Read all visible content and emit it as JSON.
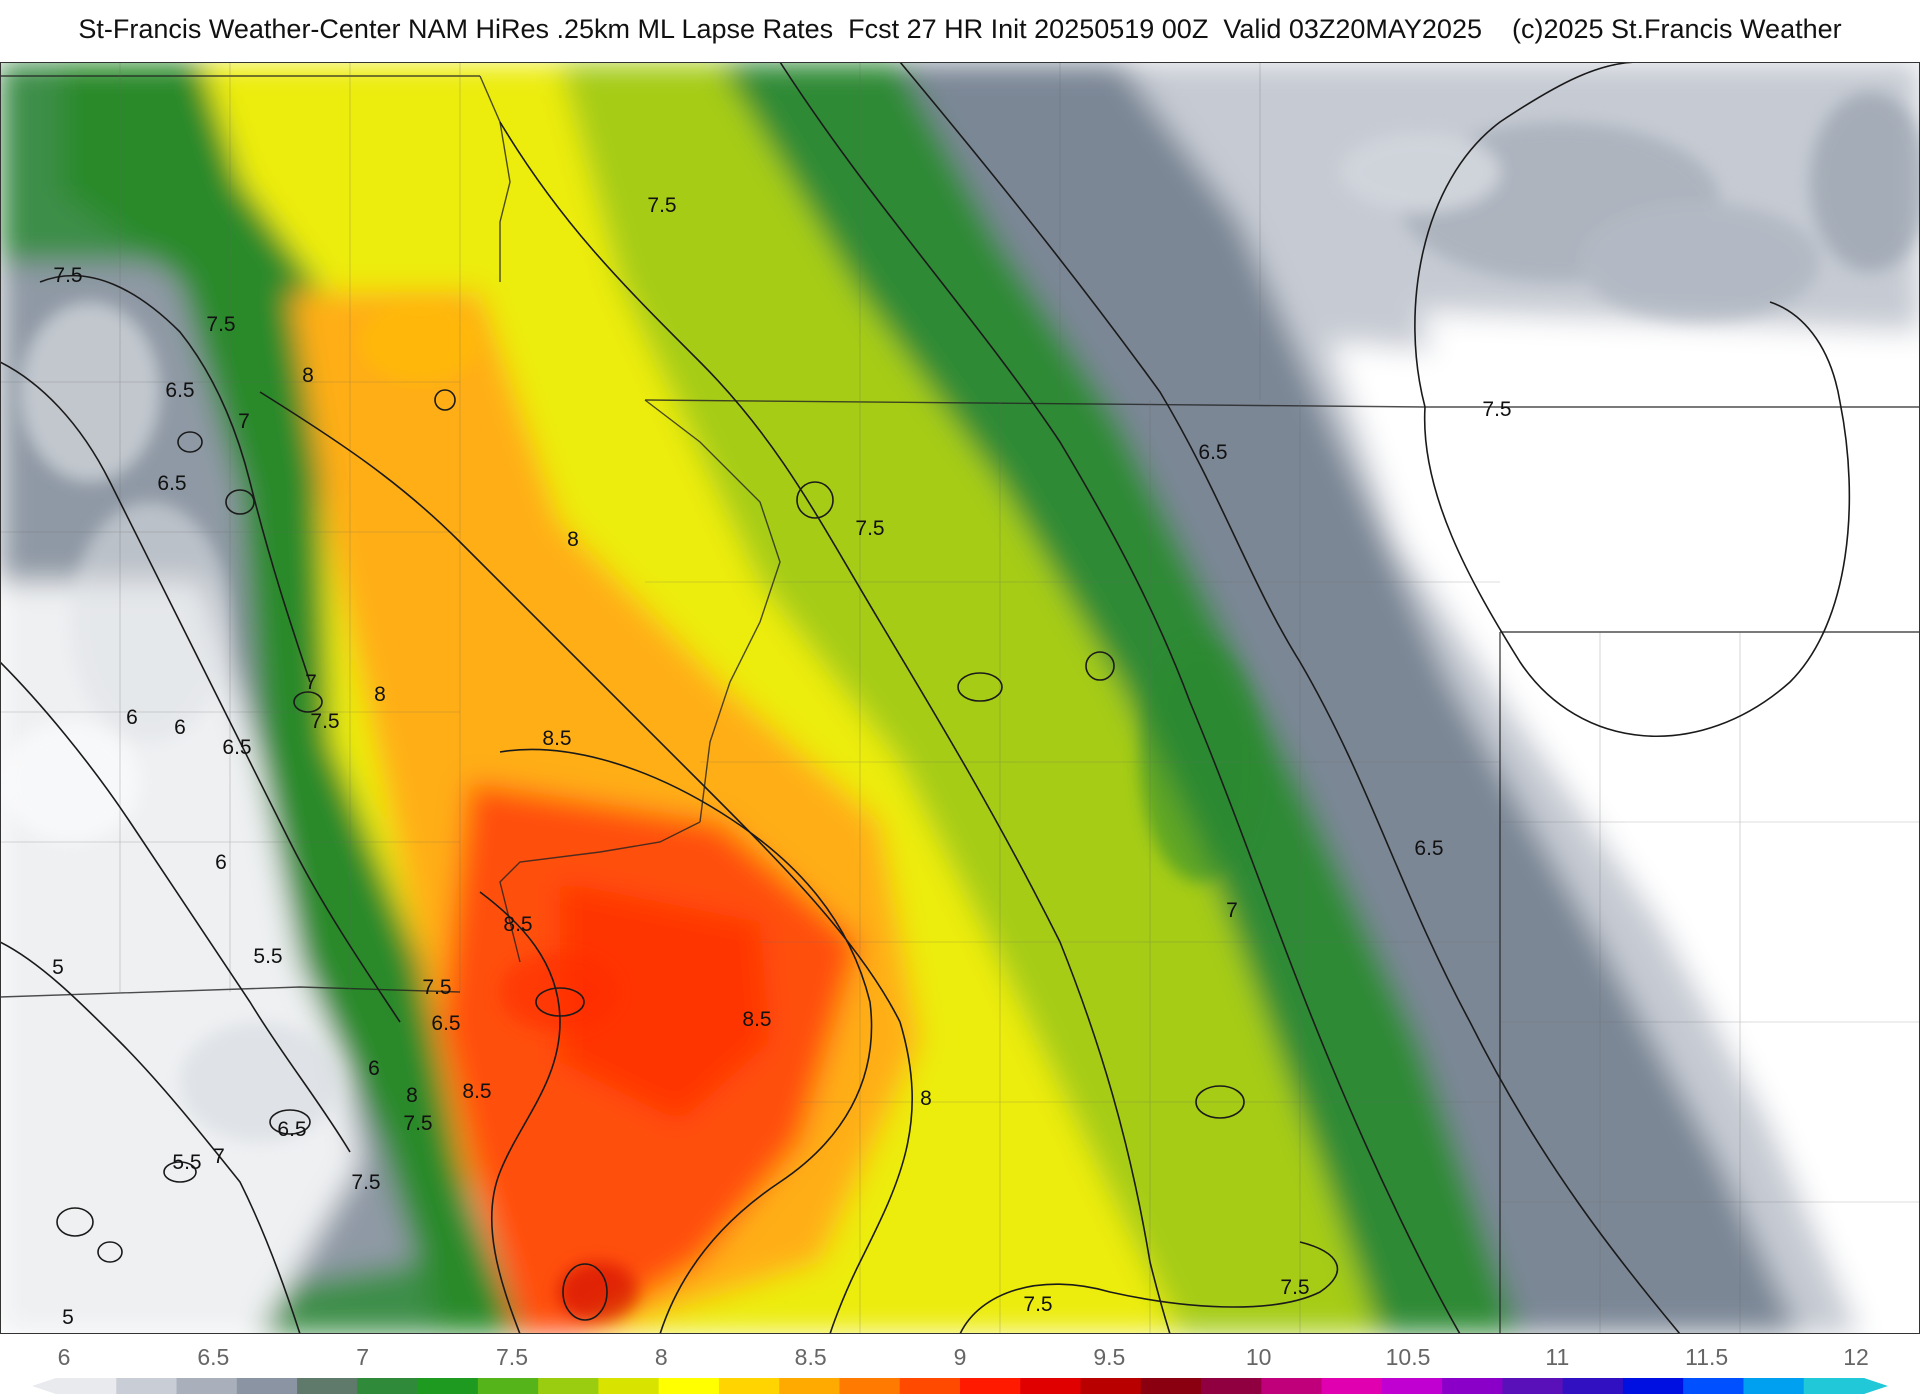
{
  "title": "St-Francis Weather-Center NAM HiRes .25km ML Lapse Rates  Fcst 27 HR Init 20250519 00Z  Valid 03Z20MAY2025    (c)2025 St.Francis Weather",
  "map": {
    "contour_labels": [
      "7.5",
      "7.5",
      "7.5",
      "8",
      "6.5",
      "7",
      "6.5",
      "8",
      "7.5",
      "6.5",
      "7.5",
      "7",
      "8",
      "7.5",
      "6",
      "6",
      "6.5",
      "8.5",
      "6",
      "5",
      "5.5",
      "8.5",
      "6.5",
      "7.5",
      "6.5",
      "6",
      "8",
      "8.5",
      "8.5",
      "8",
      "7",
      "7.5",
      "6.5",
      "5.5",
      "7",
      "7.5",
      "5",
      "7.5",
      "7.5",
      "6"
    ]
  },
  "colorbar": {
    "ticks": [
      "6",
      "6.5",
      "7",
      "7.5",
      "8",
      "8.5",
      "9",
      "9.5",
      "10",
      "10.5",
      "11",
      "11.5",
      "12"
    ],
    "colors": [
      "#e8eaee",
      "#c9ced6",
      "#a9b0bb",
      "#8a94a2",
      "#5f7a6a",
      "#2f8a3a",
      "#1e9a20",
      "#55b41a",
      "#9acc10",
      "#d8e400",
      "#ffff00",
      "#ffd400",
      "#ffaa00",
      "#ff7a00",
      "#ff4a00",
      "#ff1a00",
      "#e00000",
      "#b80000",
      "#8a0010",
      "#900040",
      "#c0007a",
      "#e000b0",
      "#c000d0",
      "#8a00c8",
      "#5a10b8",
      "#3010c0",
      "#0010e0",
      "#0050ff",
      "#00a0f0",
      "#20c8d8"
    ]
  }
}
